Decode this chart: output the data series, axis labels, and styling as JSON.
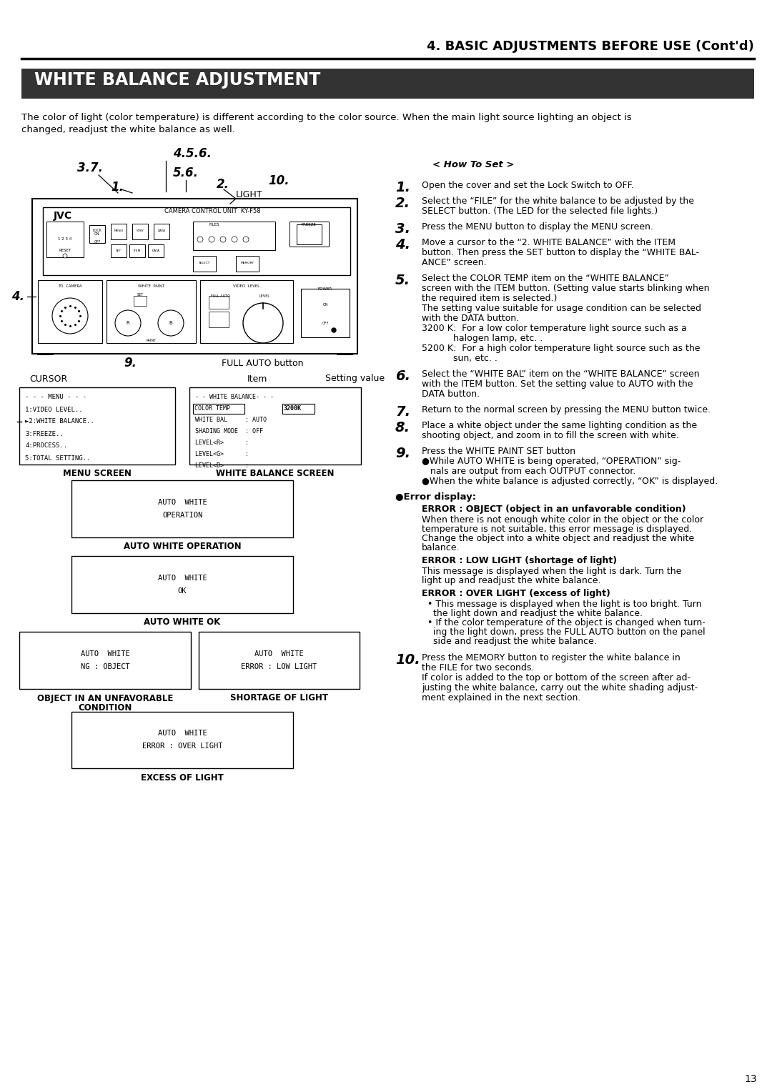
{
  "page_bg": "#ffffff",
  "top_header_text": "4. BASIC ADJUSTMENTS BEFORE USE (Cont’d)",
  "section_title": "WHITE BALANCE ADJUSTMENT",
  "section_title_bg": "#333333",
  "section_title_color": "#ffffff",
  "intro_line1": "The color of light (color temperature) is different according to the color source. When the main light source lighting an object is",
  "intro_line2": "changed, readjust the white balance as well.",
  "how_to_set_label": "< How To Set >",
  "menu_screen_lines": [
    "- - - MENU - - -",
    "1:VIDEO LEVEL..",
    "►2:WHITE BALANCE..",
    "3:FREEZE..",
    "4:PROCESS..",
    "5:TOTAL SETTING.."
  ],
  "page_number": "13"
}
